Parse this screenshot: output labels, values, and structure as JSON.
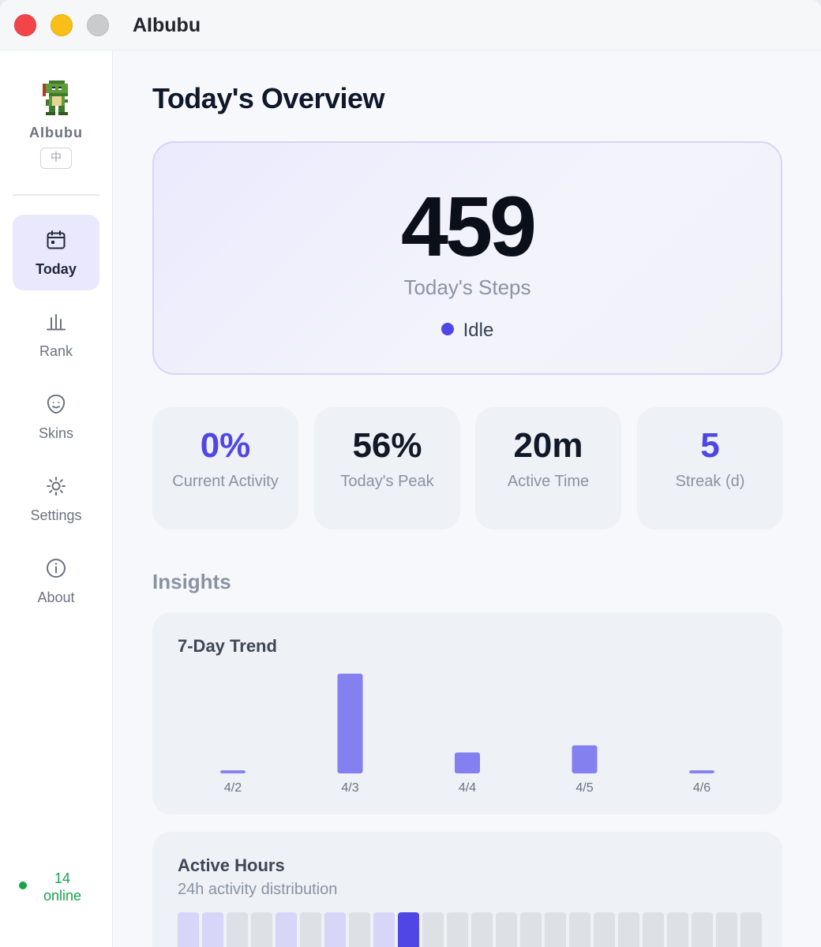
{
  "window": {
    "title": "AIbubu"
  },
  "sidebar": {
    "brand": "AIbubu",
    "lang_toggle": "中",
    "items": [
      {
        "label": "Today",
        "icon": "calendar-icon",
        "active": true
      },
      {
        "label": "Rank",
        "icon": "bar-chart-icon",
        "active": false
      },
      {
        "label": "Skins",
        "icon": "smiley-face-icon",
        "active": false
      },
      {
        "label": "Settings",
        "icon": "gear-icon",
        "active": false
      },
      {
        "label": "About",
        "icon": "info-icon",
        "active": false
      }
    ],
    "online": {
      "count": "14",
      "label": "online"
    }
  },
  "main": {
    "title": "Today's Overview",
    "hero": {
      "steps": "459",
      "label": "Today's Steps",
      "status": "Idle"
    },
    "stats": [
      {
        "value": "0%",
        "label": "Current Activity",
        "accent": true
      },
      {
        "value": "56%",
        "label": "Today's Peak",
        "accent": false
      },
      {
        "value": "20m",
        "label": "Active Time",
        "accent": false
      },
      {
        "value": "5",
        "label": "Streak (d)",
        "accent": true
      }
    ],
    "insights_title": "Insights",
    "trend": {
      "title": "7-Day Trend"
    },
    "active_hours": {
      "title": "Active Hours",
      "subtitle": "24h activity distribution",
      "levels": [
        1,
        1,
        0,
        0,
        1,
        0,
        1,
        0,
        1,
        2,
        0,
        0,
        0,
        0,
        0,
        0,
        0,
        0,
        0,
        0,
        0,
        0,
        0,
        0
      ]
    }
  },
  "colors": {
    "accent": "#4f46e5",
    "bar": "#8480ef",
    "hour_empty": "#dde0e5",
    "hour_low": "#d7d5f8",
    "hour_high": "#4f46e5",
    "online": "#16a34a"
  },
  "chart_data": {
    "type": "bar",
    "title": "7-Day Trend",
    "categories": [
      "4/2",
      "4/3",
      "4/4",
      "4/5",
      "4/6"
    ],
    "values": [
      120,
      3950,
      830,
      1110,
      120
    ],
    "ylim": [
      0,
      4000
    ],
    "grid": false,
    "legend": "none"
  }
}
